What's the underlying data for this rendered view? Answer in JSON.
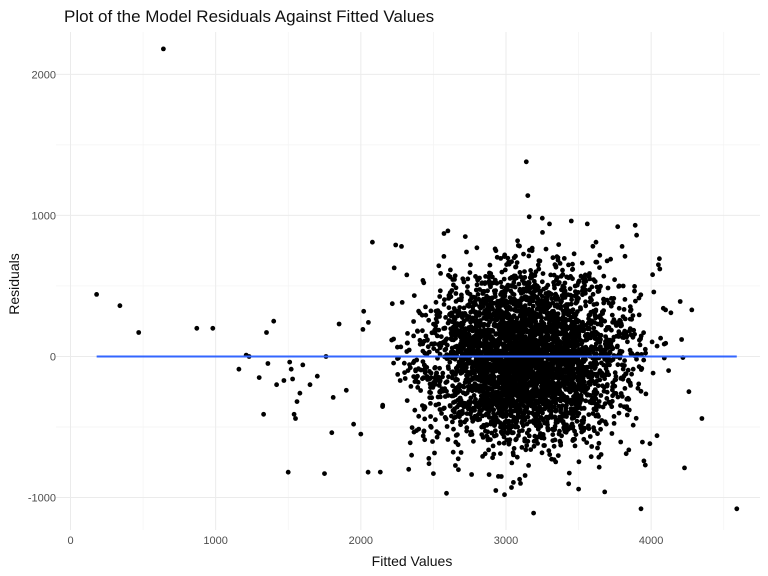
{
  "chart_data": {
    "type": "scatter",
    "title": "Plot of the Model Residuals Against Fitted Values",
    "xlabel": "Fitted Values",
    "ylabel": "Residuals",
    "xlim": [
      -100,
      4750
    ],
    "ylim": [
      -1230,
      2300
    ],
    "x_ticks": [
      0,
      1000,
      2000,
      3000,
      4000
    ],
    "x_tick_labels": [
      "0",
      "1000",
      "2000",
      "3000",
      "4000"
    ],
    "y_ticks": [
      -1000,
      0,
      1000,
      2000
    ],
    "y_tick_labels": [
      "-1000",
      "0",
      "1000",
      "2000"
    ],
    "grid": true,
    "legend": "none",
    "point_color": "#000000",
    "fit_line": {
      "color": "#3366ff",
      "x": [
        180,
        4590
      ],
      "y": [
        0,
        0
      ]
    },
    "approx_point_count": 4300,
    "points": [
      [
        180,
        440
      ],
      [
        340,
        360
      ],
      [
        470,
        170
      ],
      [
        640,
        2180
      ],
      [
        870,
        200
      ],
      [
        980,
        200
      ],
      [
        1160,
        -90
      ],
      [
        1210,
        10
      ],
      [
        1230,
        0
      ],
      [
        1300,
        -150
      ],
      [
        1330,
        -410
      ],
      [
        1350,
        170
      ],
      [
        1360,
        -50
      ],
      [
        1400,
        250
      ],
      [
        1420,
        -200
      ],
      [
        1470,
        -170
      ],
      [
        1500,
        -820
      ],
      [
        1510,
        -40
      ],
      [
        1520,
        -90
      ],
      [
        1530,
        -160
      ],
      [
        1540,
        -410
      ],
      [
        1550,
        -440
      ],
      [
        1560,
        -320
      ],
      [
        1580,
        -260
      ],
      [
        1600,
        -60
      ],
      [
        1650,
        -200
      ],
      [
        1700,
        -140
      ],
      [
        1750,
        -830
      ],
      [
        1760,
        0
      ],
      [
        1800,
        -540
      ],
      [
        1810,
        -290
      ],
      [
        1850,
        230
      ],
      [
        1900,
        -240
      ],
      [
        1950,
        -480
      ],
      [
        2000,
        -550
      ],
      [
        2020,
        320
      ],
      [
        2050,
        -820
      ],
      [
        2080,
        810
      ],
      [
        2240,
        790
      ],
      [
        2280,
        780
      ],
      [
        2330,
        -800
      ],
      [
        2350,
        -700
      ],
      [
        2440,
        -590
      ],
      [
        2470,
        -760
      ],
      [
        2500,
        -830
      ],
      [
        2590,
        -970
      ],
      [
        2600,
        890
      ],
      [
        2720,
        850
      ],
      [
        2800,
        770
      ],
      [
        2930,
        -950
      ],
      [
        2990,
        -980
      ],
      [
        3080,
        820
      ],
      [
        3100,
        -900
      ],
      [
        3140,
        1380
      ],
      [
        3150,
        1140
      ],
      [
        3160,
        990
      ],
      [
        3170,
        -660
      ],
      [
        3190,
        -1110
      ],
      [
        3250,
        980
      ],
      [
        3300,
        940
      ],
      [
        3450,
        960
      ],
      [
        3500,
        -940
      ],
      [
        3560,
        940
      ],
      [
        3620,
        810
      ],
      [
        3680,
        -960
      ],
      [
        3770,
        920
      ],
      [
        3780,
        500
      ],
      [
        3800,
        780
      ],
      [
        3820,
        710
      ],
      [
        3850,
        180
      ],
      [
        3890,
        930
      ],
      [
        3900,
        860
      ],
      [
        3930,
        -1080
      ],
      [
        3950,
        -740
      ],
      [
        3960,
        -770
      ],
      [
        4010,
        580
      ],
      [
        4050,
        650
      ],
      [
        4060,
        620
      ],
      [
        4100,
        330
      ],
      [
        4120,
        -100
      ],
      [
        4200,
        390
      ],
      [
        4210,
        120
      ],
      [
        4230,
        -790
      ],
      [
        4260,
        -250
      ],
      [
        4280,
        330
      ],
      [
        4350,
        -440
      ],
      [
        4590,
        -1080
      ]
    ]
  }
}
